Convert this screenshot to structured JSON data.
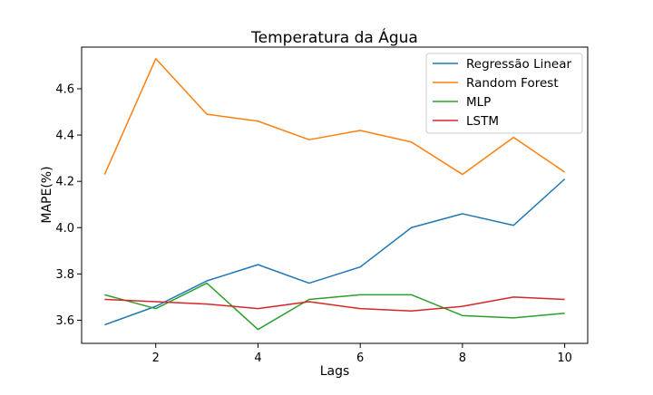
{
  "chart_data": {
    "type": "line",
    "title": "Temperatura da Água",
    "xlabel": "Lags",
    "ylabel": "MAPE(%)",
    "x": [
      1,
      2,
      3,
      4,
      5,
      6,
      7,
      8,
      9,
      10
    ],
    "xlim": [
      0.55,
      10.45
    ],
    "ylim": [
      3.5,
      4.78
    ],
    "xticks": [
      2,
      4,
      6,
      8,
      10
    ],
    "yticks": [
      3.6,
      3.8,
      4.0,
      4.2,
      4.4,
      4.6
    ],
    "ytick_labels": [
      "3.6",
      "3.8",
      "4.0",
      "4.2",
      "4.4",
      "4.6"
    ],
    "grid": false,
    "legend_position": "top-right",
    "series": [
      {
        "name": "Regressão Linear",
        "color": "#1f77b4",
        "values": [
          3.58,
          3.66,
          3.77,
          3.84,
          3.76,
          3.83,
          4.0,
          4.06,
          4.01,
          4.21
        ]
      },
      {
        "name": "Random Forest",
        "color": "#ff7f0e",
        "values": [
          4.23,
          4.73,
          4.49,
          4.46,
          4.38,
          4.42,
          4.37,
          4.23,
          4.39,
          4.24
        ]
      },
      {
        "name": "MLP",
        "color": "#2ca02c",
        "values": [
          3.71,
          3.65,
          3.76,
          3.56,
          3.69,
          3.71,
          3.71,
          3.62,
          3.61,
          3.63
        ]
      },
      {
        "name": "LSTM",
        "color": "#d62728",
        "values": [
          3.69,
          3.68,
          3.67,
          3.65,
          3.68,
          3.65,
          3.64,
          3.66,
          3.7,
          3.69
        ]
      }
    ]
  }
}
